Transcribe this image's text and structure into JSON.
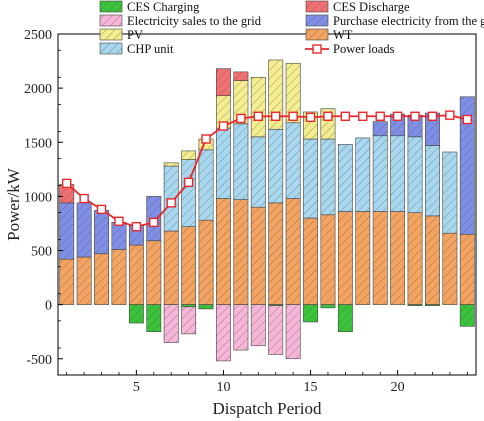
{
  "chart_data": {
    "type": "bar",
    "stacked": true,
    "xlabel": "Dispatch Period",
    "ylabel": "Power/kW",
    "xlim": [
      0.5,
      24.5
    ],
    "ylim": [
      -650,
      2500
    ],
    "x_ticks": [
      5,
      10,
      15,
      20
    ],
    "y_ticks": [
      -500,
      0,
      500,
      1000,
      1500,
      2000,
      2500
    ],
    "categories": [
      1,
      2,
      3,
      4,
      5,
      6,
      7,
      8,
      9,
      10,
      11,
      12,
      13,
      14,
      15,
      16,
      17,
      18,
      19,
      20,
      21,
      22,
      23,
      24
    ],
    "positive_series": [
      {
        "name": "WT",
        "color": "#f4a460",
        "values": [
          420,
          440,
          470,
          510,
          550,
          590,
          680,
          720,
          780,
          980,
          970,
          900,
          940,
          980,
          800,
          830,
          860,
          860,
          860,
          860,
          850,
          820,
          660,
          650
        ]
      },
      {
        "name": "CHP unit",
        "color": "#a8d8ef",
        "values": [
          0,
          0,
          0,
          0,
          0,
          0,
          600,
          620,
          650,
          650,
          700,
          650,
          680,
          700,
          730,
          700,
          620,
          680,
          700,
          700,
          700,
          650,
          750,
          0
        ]
      },
      {
        "name": "Purchase electricity from the grid",
        "color": "#7f8fe8",
        "values": [
          520,
          500,
          400,
          250,
          180,
          410,
          0,
          0,
          0,
          0,
          0,
          0,
          0,
          0,
          0,
          0,
          0,
          0,
          130,
          200,
          200,
          300,
          0,
          1270
        ]
      },
      {
        "name": "PV",
        "color": "#f4ee8e",
        "values": [
          0,
          0,
          0,
          0,
          0,
          0,
          30,
          80,
          100,
          300,
          400,
          550,
          640,
          550,
          250,
          280,
          0,
          0,
          0,
          0,
          0,
          0,
          0,
          0
        ]
      },
      {
        "name": "CES Discharge",
        "color": "#f27072",
        "values": [
          170,
          0,
          0,
          0,
          0,
          0,
          0,
          0,
          0,
          250,
          80,
          0,
          0,
          0,
          0,
          0,
          0,
          0,
          0,
          0,
          0,
          0,
          0,
          0
        ]
      }
    ],
    "negative_series": [
      {
        "name": "CES Charging",
        "color": "#3ac43a",
        "values": [
          0,
          0,
          0,
          0,
          -170,
          -250,
          0,
          -20,
          -40,
          0,
          0,
          0,
          -10,
          0,
          -160,
          -30,
          -250,
          0,
          0,
          0,
          -10,
          -10,
          0,
          -200
        ]
      },
      {
        "name": "Electricity sales to the grid",
        "color": "#f7b6d8",
        "values": [
          0,
          0,
          0,
          0,
          0,
          0,
          -350,
          -250,
          0,
          -520,
          -420,
          -380,
          -450,
          -500,
          0,
          0,
          0,
          0,
          0,
          0,
          0,
          0,
          0,
          0
        ]
      }
    ],
    "line_series": {
      "name": "Power loads",
      "color": "#e8282c",
      "values": [
        1120,
        980,
        880,
        770,
        720,
        760,
        940,
        1130,
        1530,
        1650,
        1720,
        1740,
        1740,
        1740,
        1730,
        1740,
        1740,
        1740,
        1740,
        1740,
        1740,
        1740,
        1750,
        1710
      ]
    },
    "legend": {
      "placement": "top",
      "entries": [
        {
          "name": "CES Charging",
          "color": "#3ac43a",
          "kind": "bar"
        },
        {
          "name": "CES Discharge",
          "color": "#f27072",
          "kind": "bar"
        },
        {
          "name": "Electricity sales to the grid",
          "color": "#f7b6d8",
          "kind": "bar"
        },
        {
          "name": "Purchase electricity from the grid",
          "color": "#7f8fe8",
          "kind": "bar"
        },
        {
          "name": "PV",
          "color": "#f4ee8e",
          "kind": "bar"
        },
        {
          "name": "WT",
          "color": "#f4a460",
          "kind": "bar"
        },
        {
          "name": "CHP unit",
          "color": "#a8d8ef",
          "kind": "bar"
        },
        {
          "name": "Power loads",
          "color": "#e8282c",
          "kind": "line"
        }
      ]
    }
  }
}
